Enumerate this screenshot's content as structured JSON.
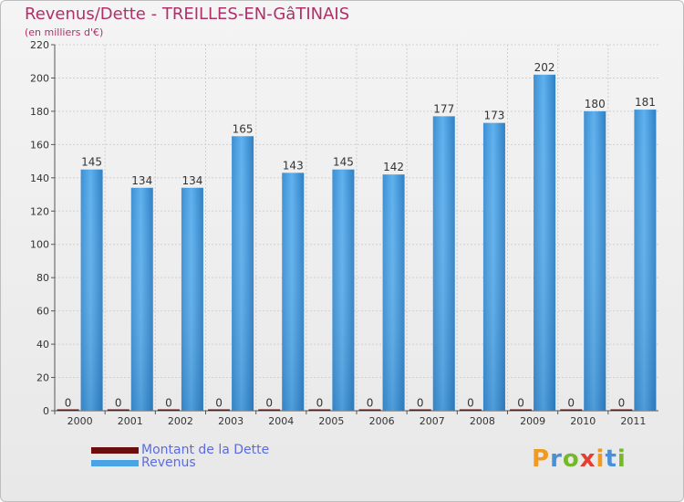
{
  "header": {
    "title": "Revenus/Dette - TREILLES-EN-GâTINAIS",
    "subtitle": "(en milliers d'€)"
  },
  "chart_data": {
    "type": "bar",
    "categories": [
      "2000",
      "2001",
      "2002",
      "2003",
      "2004",
      "2005",
      "2006",
      "2007",
      "2008",
      "2009",
      "2010",
      "2011"
    ],
    "series": [
      {
        "name": "Montant de la Dette",
        "values": [
          0,
          0,
          0,
          0,
          0,
          0,
          0,
          0,
          0,
          0,
          0,
          0
        ],
        "color": "#6b0d0d"
      },
      {
        "name": "Revenus",
        "values": [
          145,
          134,
          134,
          165,
          143,
          145,
          142,
          177,
          173,
          202,
          180,
          181
        ],
        "color": "#4aa3e4"
      }
    ],
    "ylim": [
      0,
      220
    ],
    "yticks": [
      0,
      20,
      40,
      60,
      80,
      100,
      120,
      140,
      160,
      180,
      200,
      220
    ],
    "grid": true,
    "legend": "bottom-left"
  },
  "legend": {
    "items": [
      {
        "label": "Montant de la Dette",
        "color": "#6b0d0d"
      },
      {
        "label": "Revenus",
        "color": "#4aa3e4"
      }
    ]
  },
  "logo": {
    "letters": [
      "P",
      "r",
      "o",
      "x",
      "i",
      "t",
      "i"
    ]
  }
}
